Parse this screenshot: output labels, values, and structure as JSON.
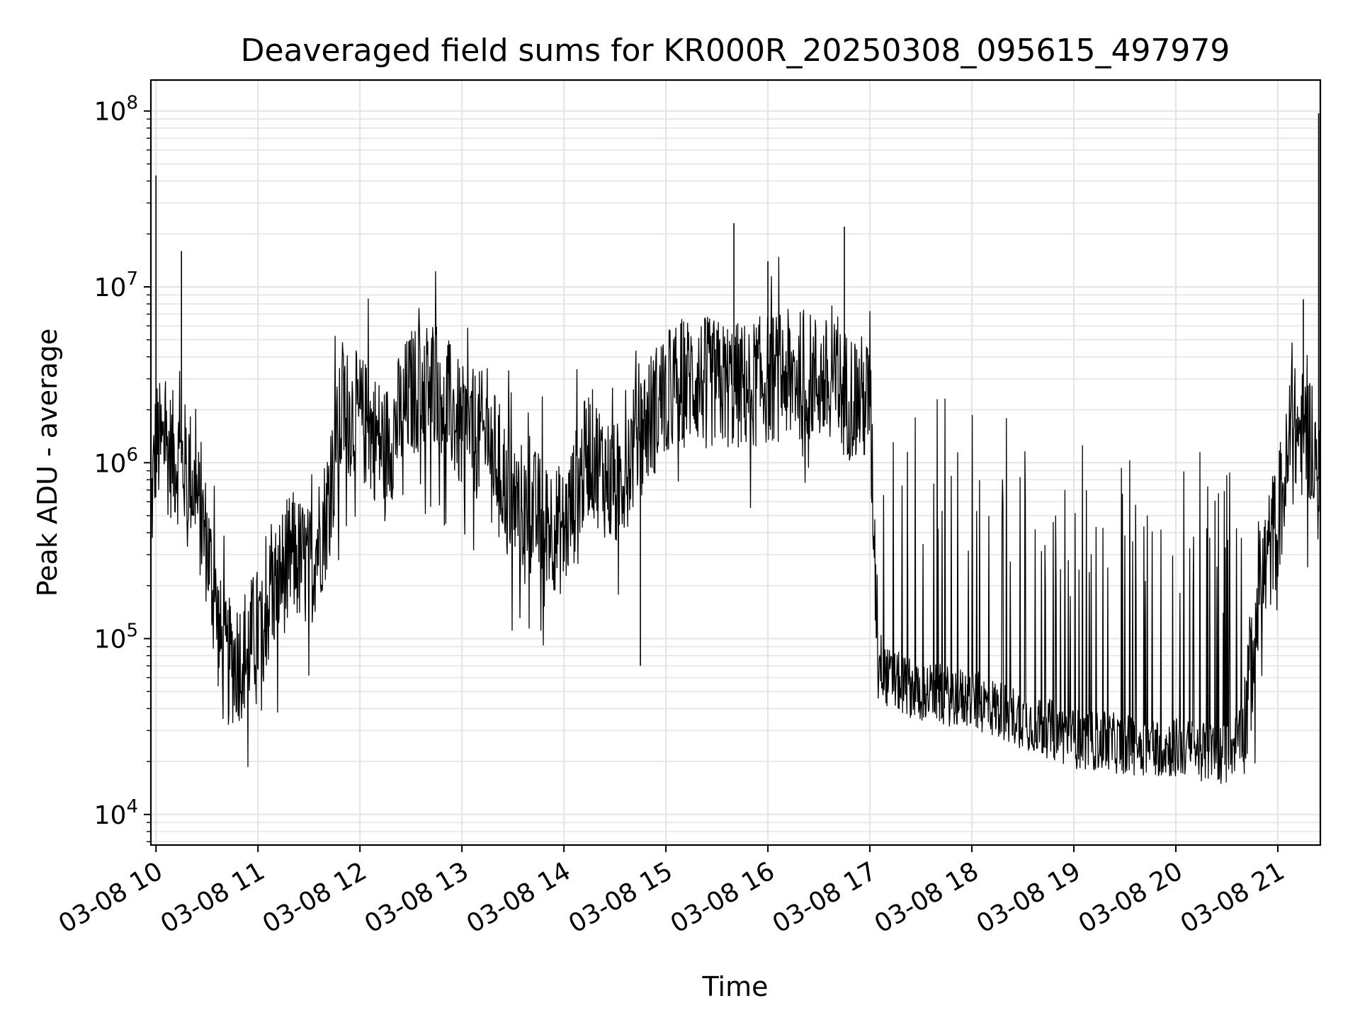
{
  "chart_data": {
    "type": "line",
    "title": "Deaveraged field sums for KR000R_20250308_095615_497979",
    "xlabel": "Time",
    "ylabel": "Peak ADU - average",
    "yscale": "log",
    "ylim": [
      6700,
      150000000
    ],
    "xlim": [
      "2025-03-08 09:57",
      "2025-03-08 21:25"
    ],
    "grid": true,
    "line_color": "#000000",
    "grid_color": "#e4e4e4",
    "x_tick_labels": [
      "03-08 10",
      "03-08 11",
      "03-08 12",
      "03-08 13",
      "03-08 14",
      "03-08 15",
      "03-08 16",
      "03-08 17",
      "03-08 18",
      "03-08 19",
      "03-08 20",
      "03-08 21"
    ],
    "x_ticks": [
      "2025-03-08 10:00",
      "2025-03-08 11:00",
      "2025-03-08 12:00",
      "2025-03-08 13:00",
      "2025-03-08 14:00",
      "2025-03-08 15:00",
      "2025-03-08 16:00",
      "2025-03-08 17:00",
      "2025-03-08 18:00",
      "2025-03-08 19:00",
      "2025-03-08 20:00",
      "2025-03-08 21:00"
    ],
    "y_ticks": [
      {
        "value": 10000,
        "base": "10",
        "exp": "4"
      },
      {
        "value": 100000,
        "base": "10",
        "exp": "5"
      },
      {
        "value": 1000000,
        "base": "10",
        "exp": "6"
      },
      {
        "value": 10000000,
        "base": "10",
        "exp": "7"
      },
      {
        "value": 100000000,
        "base": "10",
        "exp": "8"
      }
    ],
    "series": [
      {
        "x": [
          "2025-03-08 09:57",
          "2025-03-08 10:00",
          "2025-03-08 10:10",
          "2025-03-08 10:20",
          "2025-03-08 10:25",
          "2025-03-08 10:30",
          "2025-03-08 10:35",
          "2025-03-08 10:40",
          "2025-03-08 10:50",
          "2025-03-08 11:00",
          "2025-03-08 11:10",
          "2025-03-08 11:20",
          "2025-03-08 11:30",
          "2025-03-08 11:40",
          "2025-03-08 11:50",
          "2025-03-08 12:00",
          "2025-03-08 12:15",
          "2025-03-08 12:30",
          "2025-03-08 12:45",
          "2025-03-08 13:00",
          "2025-03-08 13:15",
          "2025-03-08 13:30",
          "2025-03-08 13:45",
          "2025-03-08 14:00",
          "2025-03-08 14:15",
          "2025-03-08 14:30",
          "2025-03-08 14:45",
          "2025-03-08 15:00",
          "2025-03-08 15:15",
          "2025-03-08 15:30",
          "2025-03-08 15:45",
          "2025-03-08 16:00",
          "2025-03-08 16:15",
          "2025-03-08 16:30",
          "2025-03-08 16:45",
          "2025-03-08 17:00",
          "2025-03-08 17:05",
          "2025-03-08 17:10",
          "2025-03-08 17:30",
          "2025-03-08 18:00",
          "2025-03-08 18:30",
          "2025-03-08 19:00",
          "2025-03-08 19:30",
          "2025-03-08 20:00",
          "2025-03-08 20:30",
          "2025-03-08 20:40",
          "2025-03-08 20:50",
          "2025-03-08 21:00",
          "2025-03-08 21:10",
          "2025-03-08 21:20",
          "2025-03-08 21:25"
        ],
        "y": [
          500000,
          1300000,
          1100000,
          900000,
          550000,
          350000,
          150000,
          70000,
          80000,
          110000,
          200000,
          300000,
          250000,
          500000,
          2000000,
          1800000,
          1200000,
          2500000,
          3000000,
          1500000,
          1400000,
          600000,
          500000,
          400000,
          1200000,
          700000,
          1500000,
          2500000,
          3000000,
          2800000,
          2700000,
          3000000,
          3200000,
          3000000,
          2500000,
          2200000,
          80000,
          60000,
          50000,
          45000,
          35000,
          27000,
          25000,
          24000,
          22000,
          30000,
          200000,
          500000,
          1500000,
          1400000,
          700000
        ]
      }
    ],
    "spikes": [
      {
        "x": "2025-03-08 10:00",
        "y": 43000000
      },
      {
        "x": "2025-03-08 10:15",
        "y": 16000000
      },
      {
        "x": "2025-03-08 14:45",
        "y": 70000
      },
      {
        "x": "2025-03-08 15:40",
        "y": 23000000
      },
      {
        "x": "2025-03-08 16:00",
        "y": 14000000
      },
      {
        "x": "2025-03-08 16:45",
        "y": 22000000
      },
      {
        "x": "2025-03-08 21:15",
        "y": 8500000
      },
      {
        "x": "2025-03-08 21:24",
        "y": 97000000
      }
    ]
  }
}
